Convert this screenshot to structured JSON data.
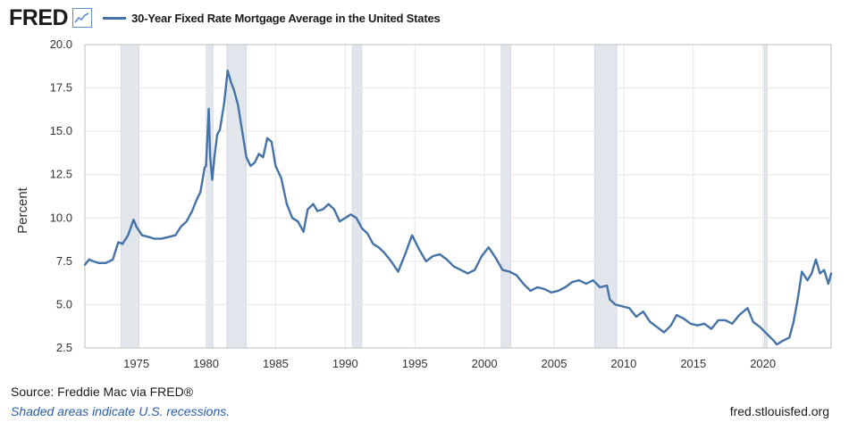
{
  "header": {
    "logo_text": "FRED",
    "logo_icon": "line-graph-icon",
    "legend_label": "30-Year Fixed Rate Mortgage Average in the United States"
  },
  "footer": {
    "source": "Source: Freddie Mac via FRED®",
    "note": "Shaded areas indicate U.S. recessions.",
    "site": "fred.stlouisfed.org"
  },
  "colors": {
    "line": "#4572a7",
    "recession": "#e1e5ec",
    "grid": "#e6e6e6",
    "axis": "#bfbfbf"
  },
  "chart_data": {
    "type": "line",
    "title": "30-Year Fixed Rate Mortgage Average in the United States",
    "xlabel": "",
    "ylabel": "Percent",
    "xlim": [
      1971.3,
      2024.9
    ],
    "ylim": [
      2.5,
      20.0
    ],
    "yticks": [
      "2.5",
      "5.0",
      "7.5",
      "10.0",
      "12.5",
      "15.0",
      "17.5",
      "20.0"
    ],
    "xticks": [
      "1975",
      "1980",
      "1985",
      "1990",
      "1995",
      "2000",
      "2005",
      "2010",
      "2015",
      "2020"
    ],
    "grid": true,
    "legend_position": "top",
    "recessions": [
      [
        1973.9,
        1975.2
      ],
      [
        1980.0,
        1980.5
      ],
      [
        1981.5,
        1982.9
      ],
      [
        1990.5,
        1991.2
      ],
      [
        2001.2,
        2001.9
      ],
      [
        2007.9,
        2009.5
      ],
      [
        2020.1,
        2020.3
      ]
    ],
    "series": [
      {
        "name": "30-Year Fixed Rate Mortgage Average in the United States",
        "x": [
          1971.3,
          1971.6,
          1971.9,
          1972.3,
          1972.8,
          1973.3,
          1973.7,
          1974.0,
          1974.4,
          1974.8,
          1975.0,
          1975.4,
          1975.9,
          1976.3,
          1976.8,
          1977.3,
          1977.8,
          1978.2,
          1978.6,
          1979.0,
          1979.3,
          1979.6,
          1979.9,
          1980.0,
          1980.2,
          1980.3,
          1980.45,
          1980.6,
          1980.8,
          1981.0,
          1981.3,
          1981.55,
          1981.8,
          1982.0,
          1982.3,
          1982.6,
          1982.9,
          1983.2,
          1983.5,
          1983.8,
          1984.1,
          1984.4,
          1984.7,
          1985.0,
          1985.4,
          1985.8,
          1986.2,
          1986.6,
          1987.0,
          1987.3,
          1987.7,
          1988.0,
          1988.4,
          1988.8,
          1989.2,
          1989.6,
          1990.0,
          1990.4,
          1990.8,
          1991.2,
          1991.6,
          1992.0,
          1992.4,
          1992.8,
          1993.3,
          1993.8,
          1994.3,
          1994.8,
          1995.3,
          1995.8,
          1996.3,
          1996.8,
          1997.3,
          1997.8,
          1998.3,
          1998.8,
          1999.3,
          1999.8,
          2000.3,
          2000.8,
          2001.3,
          2001.8,
          2002.3,
          2002.8,
          2003.3,
          2003.8,
          2004.3,
          2004.8,
          2005.3,
          2005.8,
          2006.3,
          2006.8,
          2007.3,
          2007.8,
          2008.3,
          2008.8,
          2009.0,
          2009.4,
          2009.9,
          2010.4,
          2010.9,
          2011.4,
          2011.9,
          2012.4,
          2012.9,
          2013.4,
          2013.8,
          2014.3,
          2014.8,
          2015.3,
          2015.8,
          2016.3,
          2016.8,
          2017.3,
          2017.8,
          2018.3,
          2018.9,
          2019.3,
          2019.8,
          2020.3,
          2020.8,
          2021.0,
          2021.4,
          2021.9,
          2022.2,
          2022.5,
          2022.8,
          2023.2,
          2023.5,
          2023.8,
          2024.1,
          2024.4,
          2024.7,
          2024.9
        ],
        "values": [
          7.3,
          7.6,
          7.5,
          7.4,
          7.4,
          7.6,
          8.6,
          8.5,
          9.0,
          9.9,
          9.5,
          9.0,
          8.9,
          8.8,
          8.8,
          8.9,
          9.0,
          9.5,
          9.8,
          10.4,
          11.0,
          11.5,
          12.9,
          13.0,
          16.3,
          13.5,
          12.2,
          13.5,
          14.8,
          15.1,
          16.6,
          18.5,
          17.8,
          17.4,
          16.5,
          15.0,
          13.5,
          13.0,
          13.2,
          13.7,
          13.5,
          14.6,
          14.4,
          13.0,
          12.3,
          10.8,
          10.0,
          9.8,
          9.2,
          10.5,
          10.8,
          10.4,
          10.5,
          10.8,
          10.5,
          9.8,
          10.0,
          10.2,
          10.0,
          9.4,
          9.1,
          8.5,
          8.3,
          8.0,
          7.5,
          6.9,
          7.9,
          9.0,
          8.2,
          7.5,
          7.8,
          7.9,
          7.6,
          7.2,
          7.0,
          6.8,
          7.0,
          7.8,
          8.3,
          7.7,
          7.0,
          6.9,
          6.7,
          6.2,
          5.8,
          6.0,
          5.9,
          5.7,
          5.8,
          6.0,
          6.3,
          6.4,
          6.2,
          6.4,
          6.0,
          6.1,
          5.3,
          5.0,
          4.9,
          4.8,
          4.3,
          4.6,
          4.0,
          3.7,
          3.4,
          3.8,
          4.4,
          4.2,
          3.9,
          3.8,
          3.9,
          3.6,
          4.1,
          4.1,
          3.9,
          4.4,
          4.8,
          4.0,
          3.7,
          3.3,
          2.9,
          2.7,
          2.9,
          3.1,
          4.0,
          5.3,
          6.9,
          6.4,
          6.8,
          7.6,
          6.8,
          7.0,
          6.2,
          6.8
        ]
      }
    ]
  }
}
